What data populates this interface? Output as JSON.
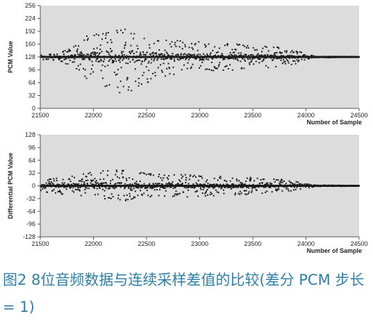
{
  "caption": "图2 8位音频数据与连续采样差值的比较(差分 PCM 步长 = 1)",
  "colors": {
    "plot_background": "#dcdcdc",
    "marker": "#1a1a1a",
    "caption_text": "#2f7fa7",
    "axis": "#555555"
  },
  "chart_data": [
    {
      "type": "scatter",
      "title": "",
      "xlabel": "Number of Sample",
      "ylabel": "PCM Value",
      "xlim": [
        21500,
        24500
      ],
      "ylim": [
        0,
        256
      ],
      "x_ticks": [
        21500,
        22000,
        22500,
        23000,
        23500,
        24000,
        24500
      ],
      "y_ticks": [
        0,
        32,
        64,
        96,
        128,
        160,
        192,
        224,
        256
      ],
      "grid": false,
      "legend": "none",
      "baseline": 128,
      "series": [
        {
          "envelope": {
            "x": [
              21500,
              21650,
              21800,
              21900,
              22000,
              22100,
              22200,
              22300,
              22400,
              22500,
              22600,
              22700,
              22800,
              22900,
              23000,
              23100,
              23200,
              23300,
              23400,
              23500,
              23600,
              23700,
              23800,
              23900,
              24000,
              24050,
              24100,
              24500
            ],
            "upper": [
              133,
              136,
              150,
              175,
              190,
              188,
              195,
              200,
              188,
              178,
              172,
              170,
              170,
              168,
              166,
              164,
              162,
              162,
              160,
              158,
              156,
              154,
              150,
              146,
              136,
              132,
              130,
              129
            ],
            "lower": [
              122,
              118,
              106,
              80,
              62,
              50,
              40,
              30,
              50,
              62,
              76,
              82,
              84,
              88,
              90,
              92,
              94,
              94,
              96,
              98,
              100,
              102,
              106,
              110,
              120,
              124,
              126,
              127
            ]
          }
        }
      ]
    },
    {
      "type": "scatter",
      "title": "",
      "xlabel": "Number of Sample",
      "ylabel": "Differential PCM Value",
      "xlim": [
        21500,
        24500
      ],
      "ylim": [
        -128,
        128
      ],
      "x_ticks": [
        21500,
        22000,
        22500,
        23000,
        23500,
        24000,
        24500
      ],
      "y_ticks": [
        -128,
        -96,
        -64,
        -32,
        0,
        32,
        64,
        96,
        128
      ],
      "grid": false,
      "legend": "none",
      "baseline": 0,
      "series": [
        {
          "envelope": {
            "x": [
              21500,
              21650,
              21800,
              21900,
              22000,
              22100,
              22200,
              22300,
              22400,
              22500,
              22600,
              22700,
              22800,
              22900,
              23000,
              23100,
              23200,
              23300,
              23400,
              23500,
              23600,
              23700,
              23800,
              23900,
              24000,
              24050,
              24100,
              24500
            ],
            "upper": [
              14,
              20,
              24,
              30,
              36,
              40,
              42,
              40,
              36,
              32,
              30,
              28,
              28,
              28,
              26,
              26,
              24,
              24,
              22,
              22,
              20,
              18,
              16,
              12,
              6,
              4,
              2,
              1
            ],
            "lower": [
              -14,
              -20,
              -24,
              -30,
              -34,
              -38,
              -40,
              -38,
              -34,
              -30,
              -30,
              -28,
              -28,
              -28,
              -26,
              -26,
              -24,
              -24,
              -22,
              -22,
              -20,
              -18,
              -16,
              -12,
              -6,
              -4,
              -2,
              -1
            ]
          }
        }
      ]
    }
  ]
}
